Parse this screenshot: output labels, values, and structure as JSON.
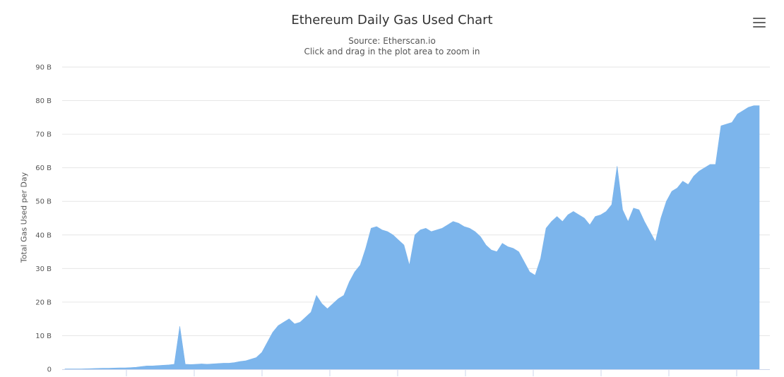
{
  "chart": {
    "title": "Ethereum Daily Gas Used Chart",
    "subtitle_source": "Source: Etherscan.io",
    "subtitle_hint": "Click and drag in the plot area to zoom in",
    "menu_icon": "hamburger-menu-icon"
  },
  "chart_data": {
    "type": "area",
    "title": "Ethereum Daily Gas Used Chart",
    "subtitle": "Source: Etherscan.io",
    "xlabel": "",
    "ylabel": "Total Gas Used per Day",
    "ylim": [
      0,
      90
    ],
    "y_unit": "B",
    "yticks": [
      "0",
      "10 B",
      "20 B",
      "30 B",
      "40 B",
      "50 B",
      "60 B",
      "70 B",
      "80 B",
      "90 B"
    ],
    "grid": true,
    "legend": "none",
    "series_color": "#7cb5ec",
    "series": [
      {
        "values": [
          0.1,
          0.1,
          0.1,
          0.1,
          0.15,
          0.2,
          0.25,
          0.3,
          0.3,
          0.35,
          0.4,
          0.4,
          0.5,
          0.6,
          0.8,
          1.0,
          1.0,
          1.1,
          1.2,
          1.3,
          1.5,
          12.8,
          1.5,
          1.4,
          1.5,
          1.6,
          1.5,
          1.6,
          1.7,
          1.8,
          1.8,
          2.0,
          2.3,
          2.5,
          3.0,
          3.5,
          5.0,
          8.0,
          11.0,
          13.0,
          14.0,
          15.0,
          13.5,
          14.0,
          15.5,
          17.0,
          22.0,
          19.5,
          18.0,
          19.5,
          21.0,
          22.0,
          26.0,
          29.0,
          31.0,
          36.0,
          42.0,
          42.5,
          41.5,
          41.0,
          40.0,
          38.5,
          37.0,
          31.0,
          40.0,
          41.5,
          42.0,
          41.0,
          41.5,
          42.0,
          43.0,
          44.0,
          43.5,
          42.5,
          42.0,
          41.0,
          39.5,
          37.0,
          35.5,
          35.0,
          37.5,
          36.5,
          36.0,
          35.0,
          32.0,
          29.0,
          28.0,
          33.0,
          42.0,
          44.0,
          45.5,
          44.0,
          46.0,
          47.0,
          46.0,
          45.0,
          43.0,
          45.5,
          46.0,
          47.0,
          49.0,
          60.5,
          47.5,
          44.0,
          48.0,
          47.5,
          44.0,
          41.0,
          38.0,
          45.0,
          50.0,
          53.0,
          54.0,
          56.0,
          55.0,
          57.5,
          59.0,
          60.0,
          61.0,
          61.0,
          72.5,
          73.0,
          73.5,
          76.0,
          77.0,
          78.0,
          78.5,
          78.5
        ]
      }
    ]
  }
}
